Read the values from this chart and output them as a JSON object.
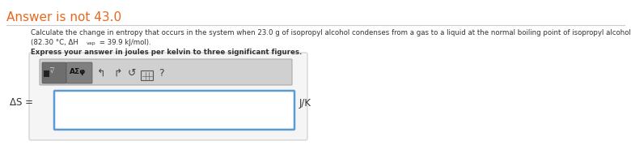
{
  "answer_not_text": "Answer is not 43.0",
  "answer_not_color": "#e8681a",
  "problem_line1": "Calculate the change in entropy that occurs in the system when 23.0 g of isopropyl alcohol condenses from a gas to a liquid at the normal boiling point of isopropyl alcohol",
  "problem_line2a": "(82.30 °C, ΔH",
  "problem_line2b": "vap",
  "problem_line2c": " = 39.9 kJ/mol).",
  "bold_line": "Express your answer in joules per kelvin to three significant figures.",
  "toolbar_icons": "↰   ↱   ↺   ≡   ?",
  "btn1_label": "■√̅̅",
  "btn2_label": "ΑΣφ",
  "delta_s_label": "ΔS =",
  "unit_label": "J/K",
  "bg_color": "#ffffff",
  "input_bg": "#ffffff",
  "input_border": "#5b9bd5",
  "toolbar_bg": "#d0d0d0",
  "toolbar_border": "#aaaaaa",
  "outer_box_bg": "#f5f5f5",
  "outer_box_border": "#cccccc",
  "separator_color": "#cccccc",
  "text_color": "#333333",
  "fig_width": 7.8,
  "fig_height": 1.79,
  "dpi": 100
}
